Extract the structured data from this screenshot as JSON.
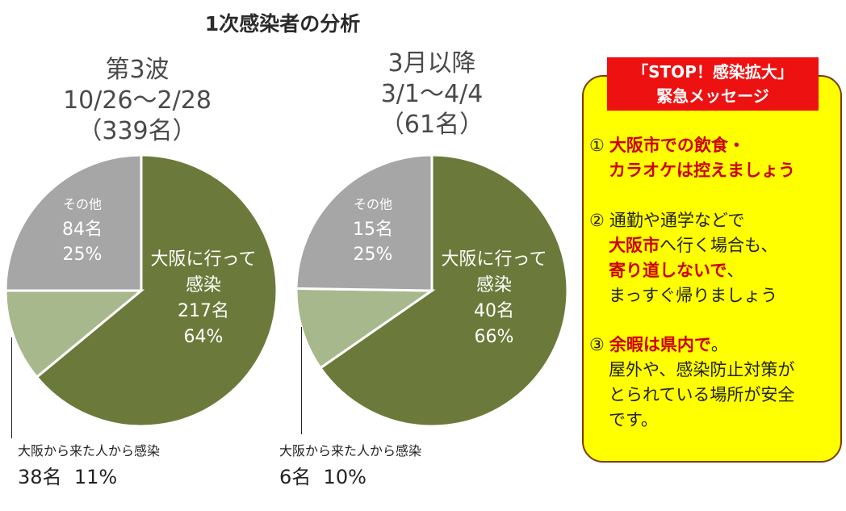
{
  "title": "1次感染者の分析",
  "colors": {
    "osaka": "#6b7a3a",
    "from_osaka": "#a7b88c",
    "other": "#a6a6a6",
    "panel": "#ffff00",
    "header": "#ee1111",
    "emph": "#cc0000"
  },
  "chart_data": [
    {
      "type": "pie",
      "title": [
        "第3波",
        "10/26～2/28",
        "（339名）"
      ],
      "slices": [
        {
          "key": "osaka",
          "label": [
            "大阪に行って",
            "感染"
          ],
          "count": "217名",
          "pct_text": "64%",
          "value": 64
        },
        {
          "key": "from_osaka",
          "label": [
            "大阪から来た人から感染"
          ],
          "count": "38名",
          "pct_text": "11%",
          "value": 11
        },
        {
          "key": "other",
          "label": [
            "その他"
          ],
          "count": "84名",
          "pct_text": "25%",
          "value": 25
        }
      ]
    },
    {
      "type": "pie",
      "title": [
        "3月以降",
        "3/1～4/4",
        "（61名）"
      ],
      "slices": [
        {
          "key": "osaka",
          "label": [
            "大阪に行って",
            "感染"
          ],
          "count": "40名",
          "pct_text": "66%",
          "value": 66
        },
        {
          "key": "from_osaka",
          "label": [
            "大阪から来た人から感染"
          ],
          "count": "6名",
          "pct_text": "10%",
          "value": 10
        },
        {
          "key": "other",
          "label": [
            "その他"
          ],
          "count": "15名",
          "pct_text": "25%",
          "value": 25
        }
      ]
    }
  ],
  "message": {
    "header": [
      "「STOP！感染拡大」",
      "緊急メッセージ"
    ],
    "items": [
      {
        "num": "①",
        "lines": [
          [
            {
              "t": "大阪市での飲食・",
              "r": true
            }
          ],
          [
            {
              "t": "カラオケは控えましょう",
              "r": true
            }
          ]
        ]
      },
      {
        "num": "②",
        "lines": [
          [
            {
              "t": "通勤や通学などで",
              "r": false
            }
          ],
          [
            {
              "t": "大阪市",
              "r": true
            },
            {
              "t": "へ行く場合も、",
              "r": false
            }
          ],
          [
            {
              "t": "寄り道しないで",
              "r": true
            },
            {
              "t": "、",
              "r": false
            }
          ],
          [
            {
              "t": "まっすぐ帰りましょう",
              "r": false
            }
          ]
        ]
      },
      {
        "num": "③",
        "lines": [
          [
            {
              "t": "余暇は県内で",
              "r": true
            },
            {
              "t": "。",
              "r": false
            }
          ],
          [
            {
              "t": "屋外や、感染防止対策が",
              "r": false
            }
          ],
          [
            {
              "t": "とられている場所が安全",
              "r": false
            }
          ],
          [
            {
              "t": "です。",
              "r": false
            }
          ]
        ]
      }
    ]
  }
}
